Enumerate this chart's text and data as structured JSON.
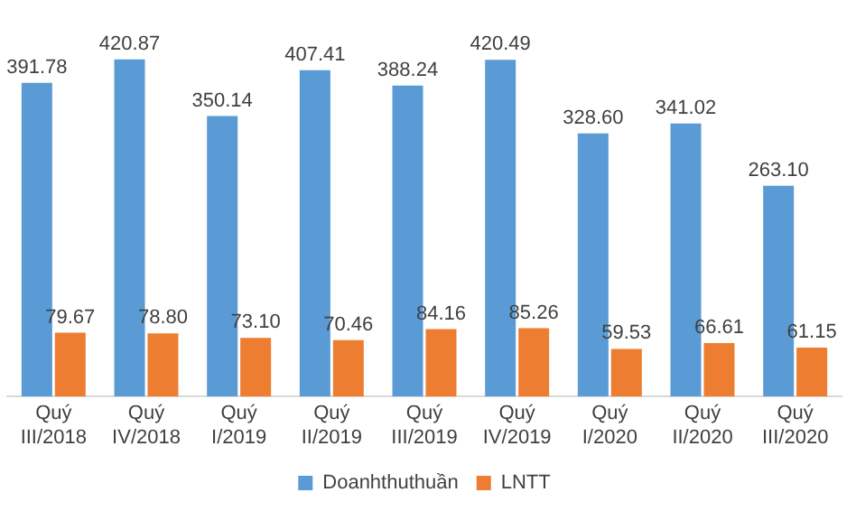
{
  "chart_data": {
    "type": "bar",
    "categories": [
      "Quý III/2018",
      "Quý IV/2018",
      "Quý I/2019",
      "Quý II/2019",
      "Quý III/2019",
      "Quý IV/2019",
      "Quý I/2020",
      "Quý II/2020",
      "Quý III/2020"
    ],
    "series": [
      {
        "name": "Doanhthuthuần",
        "color": "#5b9bd5",
        "values": [
          391.78,
          420.87,
          350.14,
          407.41,
          388.24,
          420.49,
          328.6,
          341.02,
          263.1
        ],
        "value_labels": [
          "391.78",
          "420.87",
          "350.14",
          "407.41",
          "388.24",
          "420.49",
          "328.60",
          "341.02",
          "263.10"
        ]
      },
      {
        "name": "LNTT",
        "color": "#ed7d31",
        "values": [
          79.67,
          78.8,
          73.1,
          70.46,
          84.16,
          85.26,
          59.53,
          66.61,
          61.15
        ],
        "value_labels": [
          "79.67",
          "78.80",
          "73.10",
          "70.46",
          "84.16",
          "85.26",
          "59.53",
          "66.61",
          "61.15"
        ]
      }
    ],
    "legend": "bottom",
    "grid": false
  }
}
